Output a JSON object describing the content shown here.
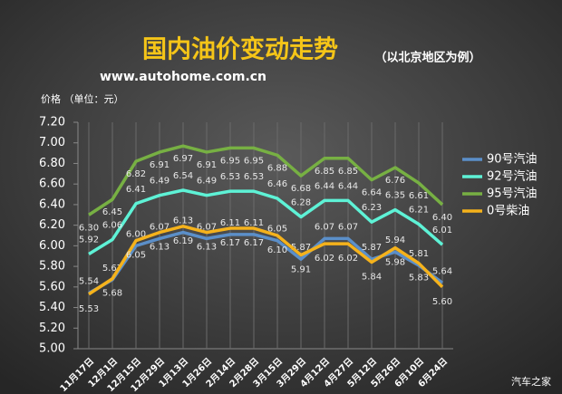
{
  "chart_data": {
    "type": "line",
    "title": "国内油价变动走势",
    "subtitle": "（以北京地区为例）",
    "source": "www.autohome.com.cn",
    "y_label": "价格 （单位：元）",
    "watermark": "汽车之家",
    "categories": [
      "11月17日",
      "12月1日",
      "12月15日",
      "12月29日",
      "1月13日",
      "1月26日",
      "2月14日",
      "2月28日",
      "3月15日",
      "3月29日",
      "4月12日",
      "4月27日",
      "5月12日",
      "5月26日",
      "6月10日",
      "6月24日"
    ],
    "series": [
      {
        "name": "90号汽油",
        "color": "#5b8fc9",
        "values": [
          5.54,
          5.67,
          6.0,
          6.07,
          6.13,
          6.07,
          6.11,
          6.11,
          6.05,
          5.87,
          6.07,
          6.07,
          5.87,
          5.94,
          5.81,
          5.64
        ],
        "value_labels": [
          "5.54",
          "5.67",
          "6.00",
          "6.07",
          "6.13",
          "6.07",
          "6.11",
          "6.11",
          "6.05",
          "5.87",
          "6.07",
          "6.07",
          "5.87",
          "5.94",
          "5.81",
          "5.64"
        ]
      },
      {
        "name": "92号汽油",
        "color": "#5ef2d6",
        "values": [
          5.92,
          6.06,
          6.41,
          6.49,
          6.54,
          6.49,
          6.53,
          6.53,
          6.46,
          6.28,
          6.44,
          6.44,
          6.23,
          6.35,
          6.21,
          6.01
        ],
        "value_labels": [
          "5.92",
          "6.06",
          "6.41",
          "6.49",
          "6.54",
          "6.49",
          "6.53",
          "6.53",
          "6.46",
          "6.28",
          "6.44",
          "6.44",
          "6.23",
          "6.35",
          "6.21",
          "6.01"
        ]
      },
      {
        "name": "95号汽油",
        "color": "#77b043",
        "values": [
          6.3,
          6.45,
          6.82,
          6.91,
          6.97,
          6.91,
          6.95,
          6.95,
          6.88,
          6.68,
          6.85,
          6.85,
          6.64,
          6.76,
          6.61,
          6.4
        ],
        "value_labels": [
          "6.30",
          "6.45",
          "6.82",
          "6.91",
          "6.97",
          "6.91",
          "6.95",
          "6.95",
          "6.88",
          "6.68",
          "6.85",
          "6.85",
          "6.64",
          "6.76",
          "6.61",
          "6.40"
        ]
      },
      {
        "name": "0号柴油",
        "color": "#f5b21b",
        "values": [
          5.53,
          5.68,
          6.05,
          6.13,
          6.19,
          6.13,
          6.17,
          6.17,
          6.1,
          5.91,
          6.02,
          6.02,
          5.84,
          5.98,
          5.83,
          5.6
        ],
        "value_labels": [
          "5.53",
          "5.68",
          "6.05",
          "6.13",
          "6.19",
          "6.13",
          "6.17",
          "6.17",
          "6.10",
          "5.91",
          "6.02",
          "6.02",
          "5.84",
          "5.98",
          "5.83",
          "5.60"
        ]
      }
    ],
    "ylim": [
      5.0,
      7.2
    ],
    "yticks": [
      {
        "value": 5.0,
        "label": "5.00"
      },
      {
        "value": 5.2,
        "label": "5.20"
      },
      {
        "value": 5.4,
        "label": "5.40"
      },
      {
        "value": 5.6,
        "label": "5.60"
      },
      {
        "value": 5.8,
        "label": "5.80"
      },
      {
        "value": 6.0,
        "label": "6.00"
      },
      {
        "value": 6.2,
        "label": "6.20"
      },
      {
        "value": 6.4,
        "label": "6.40"
      },
      {
        "value": 6.6,
        "label": "6.60"
      },
      {
        "value": 6.8,
        "label": "6.80"
      },
      {
        "value": 7.0,
        "label": "7.00"
      },
      {
        "value": 7.2,
        "label": "7.20"
      }
    ],
    "grid": true,
    "legend": "right"
  }
}
